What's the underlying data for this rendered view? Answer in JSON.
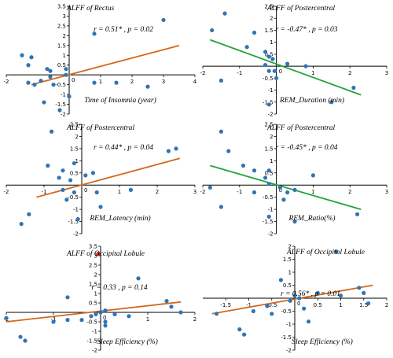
{
  "colors": {
    "point": "#2E75B6",
    "highlight": "#E8231E",
    "orange": "#D2691E",
    "green": "#22A33C",
    "axis": "#000000"
  },
  "chart_data": [
    {
      "type": "scatter",
      "title": "ALFF of Rectus",
      "xlabel": "Time of Insomnia (year)",
      "stat": "r = 0.51* , p = 0.02",
      "xlim": [
        -2,
        4
      ],
      "ylim": [
        -2,
        3.5
      ],
      "xticks": [
        -2,
        1,
        2,
        3,
        4
      ],
      "xtick_labels": [
        "-2",
        "1",
        "2",
        "3",
        "4"
      ],
      "yticks": [
        3.5,
        3,
        2.5,
        2,
        1.5,
        1,
        0.5,
        -0.5,
        -1,
        -1.5,
        -2
      ],
      "ytick_labels": [
        "3.5",
        "3",
        "2.5",
        "2",
        "1.5",
        "1",
        "0.5",
        "-0.5",
        "-1",
        "-1.5",
        "-2"
      ],
      "fit_line": {
        "x": [
          -1.2,
          3.5
        ],
        "y": [
          -0.5,
          1.5
        ],
        "color": "orange"
      },
      "points": [
        {
          "x": -1.5,
          "y": 1.0
        },
        {
          "x": -1.2,
          "y": 0.9
        },
        {
          "x": -1.3,
          "y": 0.5
        },
        {
          "x": -0.7,
          "y": 0.3
        },
        {
          "x": -0.6,
          "y": 0.2
        },
        {
          "x": -0.6,
          "y": -0.1
        },
        {
          "x": -1.3,
          "y": -0.4
        },
        {
          "x": -1.1,
          "y": -0.5
        },
        {
          "x": -0.9,
          "y": -0.3
        },
        {
          "x": -0.5,
          "y": -0.5
        },
        {
          "x": -0.8,
          "y": -1.4
        },
        {
          "x": -0.1,
          "y": 0.3
        },
        {
          "x": -0.1,
          "y": 0.0
        },
        {
          "x": 0.8,
          "y": 2.1
        },
        {
          "x": 3.0,
          "y": 2.8
        },
        {
          "x": 0.0,
          "y": -1.1
        },
        {
          "x": 0.8,
          "y": -0.4
        },
        {
          "x": 1.5,
          "y": -0.4
        },
        {
          "x": 2.5,
          "y": -0.6
        },
        {
          "x": -0.3,
          "y": -1.8
        }
      ]
    },
    {
      "type": "scatter",
      "title": "ALFF of Postercentral",
      "xlabel": "REM_Duration (min)",
      "stat": "r = -0.47* , p = 0.03",
      "xlim": [
        -2,
        3
      ],
      "ylim": [
        -2,
        2.5
      ],
      "xticks": [
        -2,
        -1,
        1,
        2,
        3
      ],
      "xtick_labels": [
        "-2",
        "-1",
        "1",
        "2",
        "3"
      ],
      "yticks": [
        2.5,
        2,
        1.5,
        1,
        0.5,
        -0.5,
        -1,
        -1.5,
        -2
      ],
      "ytick_labels": [
        "2.5",
        "2",
        "1.5",
        "1",
        "0.5",
        "-0.5",
        "-1",
        "-1.5",
        "-2"
      ],
      "fit_line": {
        "x": [
          -1.8,
          2.3
        ],
        "y": [
          1.1,
          -1.2
        ],
        "color": "green"
      },
      "points": [
        {
          "x": -1.75,
          "y": 1.5
        },
        {
          "x": -1.4,
          "y": 2.2
        },
        {
          "x": -0.8,
          "y": 0.8
        },
        {
          "x": -0.6,
          "y": 1.4
        },
        {
          "x": -0.3,
          "y": 0.6
        },
        {
          "x": -0.2,
          "y": 0.4
        },
        {
          "x": -0.3,
          "y": 0.05
        },
        {
          "x": -0.1,
          "y": 0.3
        },
        {
          "x": -0.05,
          "y": -0.2
        },
        {
          "x": 0.0,
          "y": -0.5
        },
        {
          "x": -0.2,
          "y": -0.2
        },
        {
          "x": 0.3,
          "y": 0.1
        },
        {
          "x": 0.8,
          "y": 0.0
        },
        {
          "x": 2.1,
          "y": -0.9
        },
        {
          "x": 1.5,
          "y": -1.5
        },
        {
          "x": -1.5,
          "y": -0.6
        },
        {
          "x": -0.2,
          "y": -1.6
        }
      ]
    },
    {
      "type": "scatter",
      "title": "ALFF of Postercentral",
      "xlabel": "REM_Latency (min)",
      "stat": "r = 0.44* , p = 0.04",
      "xlim": [
        -2,
        3
      ],
      "ylim": [
        -2,
        2.5
      ],
      "xticks": [
        -2,
        -1,
        1,
        2,
        3
      ],
      "xtick_labels": [
        "-2",
        "-1",
        "1",
        "2",
        "3"
      ],
      "yticks": [
        2.5,
        2,
        1.5,
        1,
        0.5,
        -0.5,
        -1,
        -1.5,
        -2
      ],
      "ytick_labels": [
        "2.5",
        "2",
        "1.5",
        "1",
        "0.5",
        "-0.5",
        "-1",
        "-1.5",
        "-2"
      ],
      "fit_line": {
        "x": [
          -1.2,
          2.6
        ],
        "y": [
          -0.5,
          1.1
        ],
        "color": "orange"
      },
      "points": [
        {
          "x": -1.6,
          "y": -1.6
        },
        {
          "x": -1.4,
          "y": -1.2
        },
        {
          "x": -0.8,
          "y": 2.2
        },
        {
          "x": -0.9,
          "y": 0.8
        },
        {
          "x": -0.5,
          "y": 0.6
        },
        {
          "x": -0.6,
          "y": 0.3
        },
        {
          "x": -0.3,
          "y": 0.2
        },
        {
          "x": -0.2,
          "y": 0.9
        },
        {
          "x": -0.5,
          "y": -0.2
        },
        {
          "x": 0.1,
          "y": 0.4
        },
        {
          "x": -0.2,
          "y": -0.3
        },
        {
          "x": 0.3,
          "y": 0.5
        },
        {
          "x": 0.4,
          "y": -0.3
        },
        {
          "x": 1.3,
          "y": -0.2
        },
        {
          "x": 2.3,
          "y": 1.4
        },
        {
          "x": 2.5,
          "y": 1.5
        },
        {
          "x": 0.5,
          "y": -0.9
        },
        {
          "x": -0.1,
          "y": -1.4
        },
        {
          "x": -0.4,
          "y": -0.6
        }
      ]
    },
    {
      "type": "scatter",
      "title": "ALFF of Postercentral",
      "xlabel": "REM_Ratio(%)",
      "stat": "r = -0.45* , p = 0.04",
      "xlim": [
        -2,
        3
      ],
      "ylim": [
        -2,
        2.5
      ],
      "xticks": [
        -2,
        -1,
        1,
        2,
        3
      ],
      "xtick_labels": [
        "-2",
        "-1",
        "1",
        "2",
        "3"
      ],
      "yticks": [
        2.5,
        2,
        1.5,
        1,
        0.5,
        -0.5,
        -1,
        -1.5,
        -2
      ],
      "ytick_labels": [
        "2.5",
        "2",
        "1.5",
        "1",
        "0.5",
        "-0.5",
        "-1",
        "-1.5",
        "-2"
      ],
      "fit_line": {
        "x": [
          -1.8,
          2.3
        ],
        "y": [
          0.8,
          -1.0
        ],
        "color": "green"
      },
      "points": [
        {
          "x": -1.8,
          "y": -0.1
        },
        {
          "x": -1.5,
          "y": 2.2
        },
        {
          "x": -1.5,
          "y": -0.9
        },
        {
          "x": -1.3,
          "y": 1.4
        },
        {
          "x": -0.9,
          "y": 0.8
        },
        {
          "x": -0.6,
          "y": 0.6
        },
        {
          "x": -0.2,
          "y": 0.6
        },
        {
          "x": -0.3,
          "y": 0.3
        },
        {
          "x": -0.2,
          "y": 0.05
        },
        {
          "x": 0.1,
          "y": -0.1
        },
        {
          "x": 0.3,
          "y": -0.3
        },
        {
          "x": 0.5,
          "y": -0.2
        },
        {
          "x": 1.0,
          "y": 0.4
        },
        {
          "x": 2.2,
          "y": -1.2
        },
        {
          "x": 0.5,
          "y": -1.5
        },
        {
          "x": -0.2,
          "y": -1.3
        },
        {
          "x": -0.6,
          "y": -0.3
        },
        {
          "x": 0.2,
          "y": -0.6
        }
      ]
    },
    {
      "type": "scatter",
      "title": "ALFF of Occipital Lobule",
      "xlabel": "Sleep Efficiency (%)",
      "stat": "r = 0.33 , p = 0.14",
      "xlim": [
        -2,
        2
      ],
      "ylim": [
        -2,
        3.5
      ],
      "xticks": [
        -2,
        -1,
        1,
        2
      ],
      "xtick_labels": [
        "-2",
        "-1",
        "1",
        "2"
      ],
      "yticks": [
        3.5,
        3,
        2.5,
        2,
        1.5,
        1,
        0.5,
        -0.5,
        -1,
        -1.5,
        -2
      ],
      "ytick_labels": [
        "3.5",
        "3",
        "2.5",
        "2",
        "1.5",
        "1",
        "0.5",
        "-0.5",
        "-1",
        "-1.5",
        "-2"
      ],
      "fit_line": {
        "x": [
          -2.0,
          1.7
        ],
        "y": [
          -0.5,
          0.55
        ],
        "color": "orange"
      },
      "points": [
        {
          "x": -2.0,
          "y": -0.3
        },
        {
          "x": -1.7,
          "y": -1.3
        },
        {
          "x": -1.6,
          "y": -1.5
        },
        {
          "x": -1.0,
          "y": -0.5
        },
        {
          "x": -0.7,
          "y": -0.4
        },
        {
          "x": -0.7,
          "y": 0.8
        },
        {
          "x": -0.2,
          "y": -0.2
        },
        {
          "x": -0.1,
          "y": -0.1
        },
        {
          "x": 0.0,
          "y": 0.0
        },
        {
          "x": 0.1,
          "y": 0.1
        },
        {
          "x": 0.1,
          "y": -0.5
        },
        {
          "x": 0.3,
          "y": -0.1
        },
        {
          "x": 0.8,
          "y": 1.8
        },
        {
          "x": 0.6,
          "y": -0.2
        },
        {
          "x": 1.4,
          "y": 0.6
        },
        {
          "x": 1.5,
          "y": 0.3
        },
        {
          "x": 1.7,
          "y": 0.0
        },
        {
          "x": 0.1,
          "y": -0.7
        },
        {
          "x": -0.4,
          "y": -0.4
        },
        {
          "x": -0.05,
          "y": 3.1,
          "highlight": true
        }
      ]
    },
    {
      "type": "scatter",
      "title": "ALFF of Occipital Lobule",
      "xlabel": "Sleep Efficiency (%)",
      "stat": "r = 0.56* , p = 0.01",
      "xlim": [
        -2,
        2
      ],
      "ylim": [
        -2,
        2
      ],
      "xticks": [
        -1.5,
        -1,
        -0.5,
        0.5,
        1,
        1.5,
        2
      ],
      "xtick_labels": [
        "-1.5",
        "-1",
        "-0.5",
        "0.5",
        "1",
        "1.5",
        "2"
      ],
      "yticks": [
        2,
        1.5,
        1,
        0.5,
        -0.5,
        -1,
        -1.5,
        -2
      ],
      "ytick_labels": [
        "2",
        "1.5",
        "1",
        "0.5",
        "-0.5",
        "-1",
        "-1.5",
        "-2"
      ],
      "fit_line": {
        "x": [
          -1.8,
          1.7
        ],
        "y": [
          -0.6,
          0.5
        ],
        "color": "orange"
      },
      "points": [
        {
          "x": -1.7,
          "y": -0.6
        },
        {
          "x": -1.2,
          "y": -1.2
        },
        {
          "x": -1.1,
          "y": -1.4
        },
        {
          "x": -0.9,
          "y": -0.5
        },
        {
          "x": -0.5,
          "y": -0.6
        },
        {
          "x": -0.3,
          "y": 0.7
        },
        {
          "x": -0.1,
          "y": -0.1
        },
        {
          "x": 0.0,
          "y": 0.1
        },
        {
          "x": 0.1,
          "y": 0.0
        },
        {
          "x": 0.2,
          "y": -0.4
        },
        {
          "x": 0.3,
          "y": -0.9
        },
        {
          "x": 0.5,
          "y": 0.2
        },
        {
          "x": 0.9,
          "y": 1.8
        },
        {
          "x": 1.0,
          "y": 0.1
        },
        {
          "x": 1.4,
          "y": 0.4
        },
        {
          "x": 1.5,
          "y": 0.2
        },
        {
          "x": 1.6,
          "y": -0.2
        },
        {
          "x": -0.6,
          "y": -0.3
        }
      ]
    }
  ]
}
